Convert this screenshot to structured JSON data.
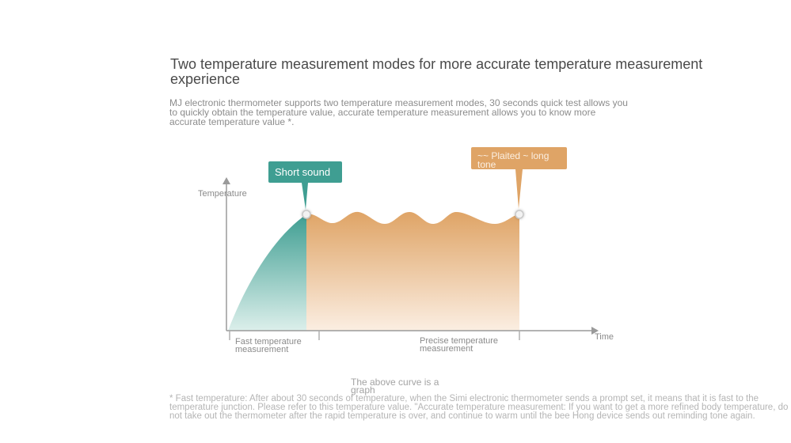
{
  "headline": "Two temperature measurement modes for more accurate temperature measurement experience",
  "intro": "MJ electronic thermometer supports two temperature measurement modes, 30 seconds quick test allows you to quickly obtain the temperature value, accurate temperature measurement allows you to know more accurate temperature value *.",
  "diagram": {
    "callout_short": "Short sound",
    "callout_long": "~~ Plaited ~ long tone",
    "y_axis_label": "Temperature",
    "x_axis_label": "Time",
    "phase_fast": "Fast temperature measurement",
    "phase_precise": "Precise temperature measurement",
    "colors": {
      "fast_phase": "#3f9e92",
      "precise_phase": "#dfa466",
      "axis": "#9a9a9a"
    }
  },
  "caption": "The above curve is a graph",
  "footnote": "* Fast temperature: After about 30 seconds of temperature, when the Simi electronic thermometer sends a prompt set, it means that it is fast to the temperature junction. Please refer to this temperature value. \"Accurate temperature measurement: If you want to get a more refined body temperature, do not take out the thermometer after the rapid temperature is over, and continue to warm until the bee Hong device sends out reminding tone again."
}
